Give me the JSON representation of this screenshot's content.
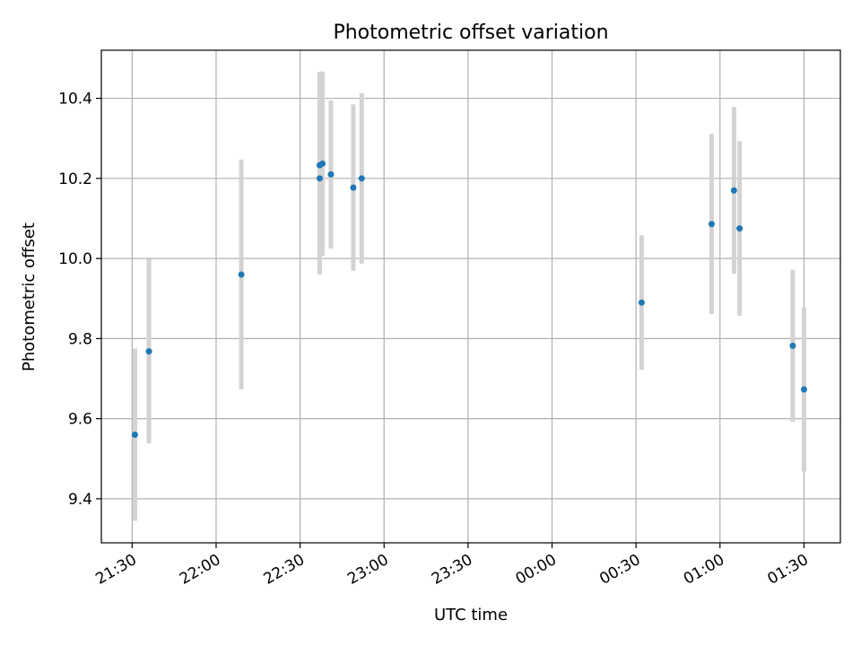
{
  "chart_data": {
    "type": "scatter",
    "title": "Photometric offset variation",
    "xlabel": "UTC time",
    "ylabel": "Photometric offset",
    "x_axis": {
      "type": "time",
      "ticks": [
        "21:30",
        "22:00",
        "22:30",
        "23:00",
        "23:30",
        "00:00",
        "00:30",
        "01:00",
        "01:30"
      ],
      "range": [
        "21:19",
        "01:43"
      ]
    },
    "ylim": [
      9.29,
      10.52
    ],
    "yticks": [
      "9.4",
      "9.6",
      "9.8",
      "10.0",
      "10.2",
      "10.4"
    ],
    "grid": true,
    "colors": {
      "point": "#1f77b4",
      "errorbar": "#d3d3d3",
      "grid": "#b0b0b0"
    },
    "points": [
      {
        "time": "21:31",
        "y": 9.56,
        "err": 0.215
      },
      {
        "time": "21:36",
        "y": 9.768,
        "err": 0.23
      },
      {
        "time": "22:09",
        "y": 9.96,
        "err": 0.287
      },
      {
        "time": "22:37",
        "y": 10.233,
        "err": 0.233
      },
      {
        "time": "22:37",
        "y": 10.2,
        "err": 0.24
      },
      {
        "time": "22:38",
        "y": 10.237,
        "err": 0.23
      },
      {
        "time": "22:41",
        "y": 10.21,
        "err": 0.185
      },
      {
        "time": "22:49",
        "y": 10.177,
        "err": 0.208
      },
      {
        "time": "22:52",
        "y": 10.2,
        "err": 0.213
      },
      {
        "time": "00:32",
        "y": 9.89,
        "err": 0.168
      },
      {
        "time": "00:57",
        "y": 10.086,
        "err": 0.225
      },
      {
        "time": "01:05",
        "y": 10.17,
        "err": 0.208
      },
      {
        "time": "01:07",
        "y": 10.075,
        "err": 0.218
      },
      {
        "time": "01:26",
        "y": 9.782,
        "err": 0.19
      },
      {
        "time": "01:30",
        "y": 9.673,
        "err": 0.205
      }
    ]
  }
}
